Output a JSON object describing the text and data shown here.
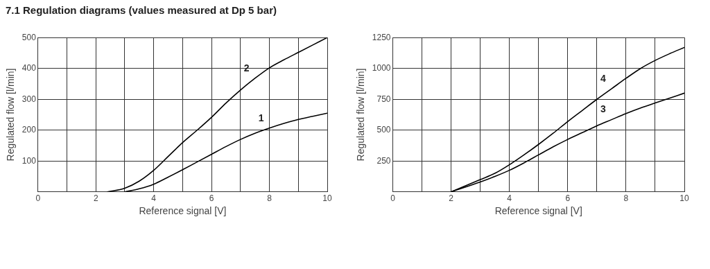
{
  "chart_data": [
    {
      "type": "line",
      "title": "7.1 Regulation diagrams (values measured at Dp 5 bar)",
      "xlabel": "Reference signal [V]",
      "ylabel": "Regulated flow [l/min]",
      "series": [
        {
          "name": "1",
          "color": "#000000",
          "x": [
            3,
            3.5,
            4,
            4.5,
            5,
            5.5,
            6,
            6.5,
            7,
            7.5,
            8,
            8.5,
            9,
            9.5,
            10
          ],
          "values": [
            0,
            10,
            25,
            48,
            72,
            97,
            122,
            147,
            170,
            190,
            207,
            222,
            235,
            245,
            255
          ]
        },
        {
          "name": "2",
          "color": "#000000",
          "x": [
            2.4,
            3,
            3.5,
            4,
            4.5,
            5,
            5.5,
            6,
            6.5,
            7,
            7.5,
            8,
            8.5,
            9,
            9.5,
            10
          ],
          "values": [
            0,
            12,
            35,
            70,
            115,
            160,
            200,
            242,
            288,
            330,
            368,
            402,
            428,
            452,
            476,
            500
          ]
        }
      ],
      "xlim": [
        0,
        10
      ],
      "xticks": [
        0,
        {
          "value": 1,
          "label": null
        },
        2,
        {
          "value": 3,
          "label": null
        },
        4,
        {
          "value": 5,
          "label": null
        },
        6,
        {
          "value": 7,
          "label": null
        },
        8,
        {
          "value": 9,
          "label": null
        },
        10
      ],
      "ylim": [
        0,
        500
      ],
      "yticks": [
        {
          "value": 0,
          "label": null
        },
        100,
        200,
        300,
        400,
        500
      ],
      "grid": true,
      "legend": false,
      "marker": "none",
      "line_style": "solid"
    },
    {
      "type": "line",
      "xlabel": "Reference signal [V]",
      "ylabel": "Regulated flow [l/min]",
      "series": [
        {
          "name": "3",
          "color": "#000000",
          "x": [
            2,
            3,
            3.5,
            4,
            4.5,
            5,
            5.5,
            6,
            6.5,
            7,
            7.5,
            8,
            8.5,
            9,
            9.5,
            10
          ],
          "values": [
            0,
            80,
            125,
            175,
            235,
            300,
            365,
            425,
            480,
            535,
            585,
            635,
            680,
            720,
            760,
            800
          ]
        },
        {
          "name": "4",
          "color": "#000000",
          "x": [
            2,
            3,
            3.5,
            4,
            4.5,
            5,
            5.5,
            6,
            6.5,
            7,
            7.5,
            8,
            8.5,
            9,
            9.5,
            10
          ],
          "values": [
            0,
            100,
            150,
            220,
            300,
            385,
            475,
            570,
            660,
            750,
            835,
            920,
            1000,
            1065,
            1120,
            1170
          ]
        }
      ],
      "xlim": [
        0,
        10
      ],
      "xticks": [
        0,
        {
          "value": 1,
          "label": null
        },
        2,
        {
          "value": 3,
          "label": null
        },
        4,
        {
          "value": 5,
          "label": null
        },
        6,
        {
          "value": 7,
          "label": null
        },
        8,
        {
          "value": 9,
          "label": null
        },
        10
      ],
      "ylim": [
        0,
        1250
      ],
      "yticks": [
        {
          "value": 0,
          "label": null
        },
        250,
        500,
        750,
        1000,
        1250
      ],
      "grid": true,
      "legend": false,
      "marker": "none",
      "line_style": "solid"
    }
  ]
}
